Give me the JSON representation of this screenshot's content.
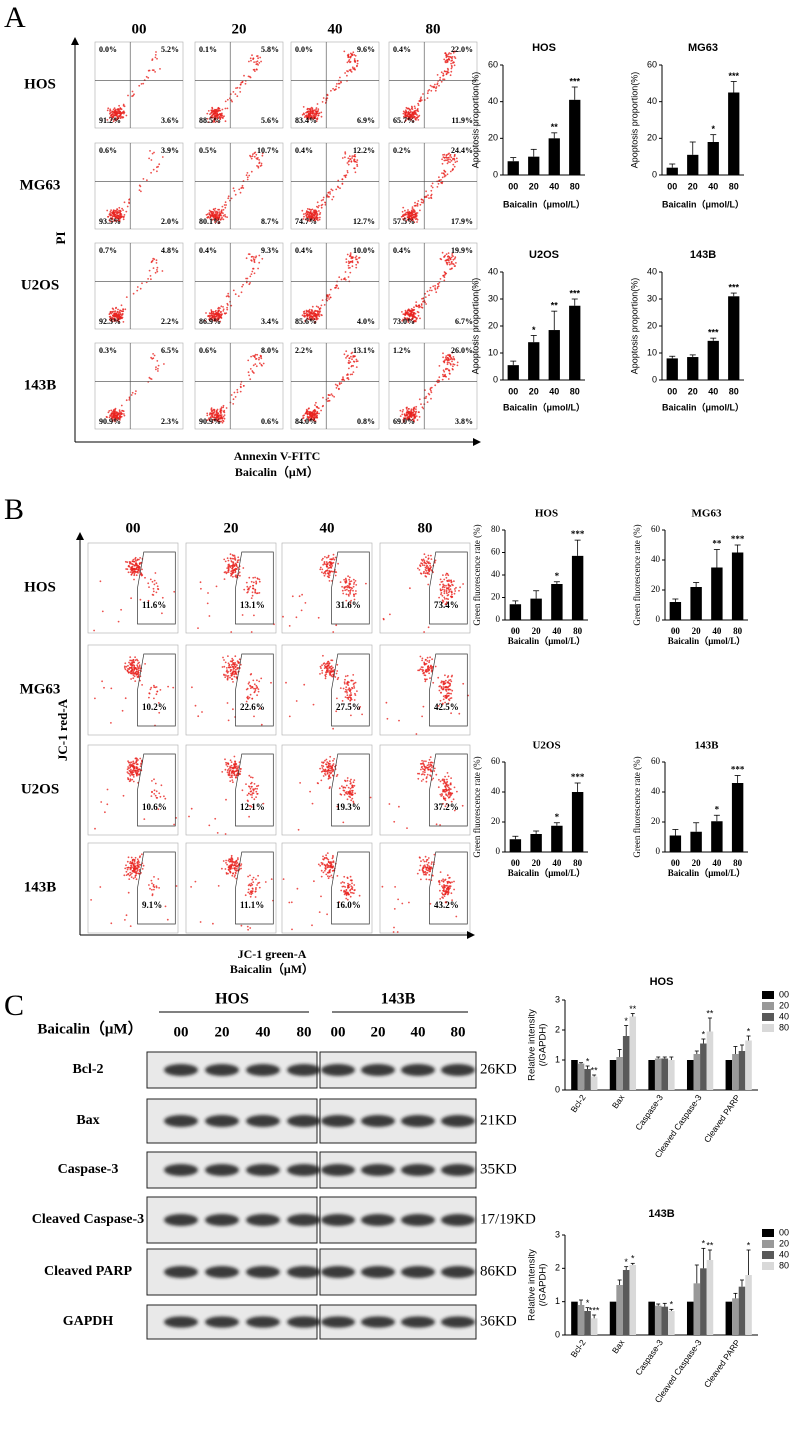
{
  "panel_a": {
    "label": "A",
    "columns": [
      "00",
      "20",
      "40",
      "80"
    ],
    "rows": [
      "HOS",
      "MG63",
      "U2OS",
      "143B"
    ],
    "y_axis_label": "PI",
    "x_axis_label": "Annexin V-FITC",
    "treatment_label": "Baicalin（μM）",
    "quadrants": [
      [
        [
          "0.0%",
          "5.2%",
          "91.2%",
          "3.6%"
        ],
        [
          "0.1%",
          "5.8%",
          "88.5%",
          "5.6%"
        ],
        [
          "0.0%",
          "9.6%",
          "83.4%",
          "6.9%"
        ],
        [
          "0.4%",
          "22.0%",
          "65.7%",
          "11.9%"
        ]
      ],
      [
        [
          "0.6%",
          "3.9%",
          "93.5%",
          "2.0%"
        ],
        [
          "0.5%",
          "10.7%",
          "80.1%",
          "8.7%"
        ],
        [
          "0.4%",
          "12.2%",
          "74.7%",
          "12.7%"
        ],
        [
          "0.2%",
          "24.4%",
          "57.5%",
          "17.9%"
        ]
      ],
      [
        [
          "0.7%",
          "4.8%",
          "92.3%",
          "2.2%"
        ],
        [
          "0.4%",
          "9.3%",
          "86.9%",
          "3.4%"
        ],
        [
          "0.4%",
          "10.0%",
          "85.6%",
          "4.0%"
        ],
        [
          "0.4%",
          "19.9%",
          "73.0%",
          "6.7%"
        ]
      ],
      [
        [
          "0.3%",
          "6.5%",
          "90.9%",
          "2.3%"
        ],
        [
          "0.6%",
          "8.0%",
          "90.9%",
          "0.6%"
        ],
        [
          "2.2%",
          "13.1%",
          "84.0%",
          "0.8%"
        ],
        [
          "1.2%",
          "26.0%",
          "69.0%",
          "3.8%"
        ]
      ]
    ]
  },
  "panel_b": {
    "label": "B",
    "columns": [
      "00",
      "20",
      "40",
      "80"
    ],
    "rows": [
      "HOS",
      "MG63",
      "U2OS",
      "143B"
    ],
    "y_axis_label": "JC-1 red-A",
    "x_axis_label": "JC-1 green-A",
    "treatment_label": "Baicalin（μM）",
    "gates": [
      [
        "11.6%",
        "13.1%",
        "31.6%",
        "73.4%"
      ],
      [
        "10.2%",
        "22.6%",
        "27.5%",
        "42.5%"
      ],
      [
        "10.6%",
        "12.1%",
        "19.3%",
        "37.2%"
      ],
      [
        "9.1%",
        "11.1%",
        "16.0%",
        "43.2%"
      ]
    ]
  },
  "panel_c": {
    "label": "C",
    "treatment_label": "Baicalin（μM）",
    "groups": [
      {
        "name": "HOS",
        "lanes": [
          "00",
          "20",
          "40",
          "80"
        ]
      },
      {
        "name": "143B",
        "lanes": [
          "00",
          "20",
          "40",
          "80"
        ]
      }
    ],
    "proteins": [
      "Bcl-2",
      "Bax",
      "Caspase-3",
      "Cleaved Caspase-3",
      "Cleaved PARP",
      "GAPDH"
    ],
    "sizes": [
      "26KD",
      "21KD",
      "35KD",
      "17/19KD",
      "86KD",
      "36KD"
    ]
  },
  "chart_data": [
    {
      "type": "bar",
      "title": "HOS",
      "categories": [
        "00",
        "20",
        "40",
        "80"
      ],
      "values": [
        7.5,
        10,
        20,
        41
      ],
      "errors": [
        2,
        4,
        3,
        7
      ],
      "significance": [
        null,
        null,
        "**",
        "***"
      ],
      "y_label": "Apoptosis proportion(%)",
      "x_label": "Baicalin（μmol/L）",
      "ylim": [
        0,
        60
      ],
      "yticks": [
        0,
        20,
        40,
        60
      ],
      "color": "#000000"
    },
    {
      "type": "bar",
      "title": "MG63",
      "categories": [
        "00",
        "20",
        "40",
        "80"
      ],
      "values": [
        4,
        11,
        18,
        45
      ],
      "errors": [
        2,
        7,
        4,
        6
      ],
      "significance": [
        null,
        null,
        "*",
        "***"
      ],
      "y_label": "Apoptosis proportion(%)",
      "x_label": "Baicalin（μmol/L）",
      "ylim": [
        0,
        60
      ],
      "yticks": [
        0,
        20,
        40,
        60
      ],
      "color": "#000000"
    },
    {
      "type": "bar",
      "title": "U2OS",
      "categories": [
        "00",
        "20",
        "40",
        "80"
      ],
      "values": [
        5.5,
        14,
        18.5,
        27.5
      ],
      "errors": [
        1.5,
        2.5,
        7,
        2.5
      ],
      "significance": [
        null,
        "*",
        "**",
        "***"
      ],
      "y_label": "Apoptosis proportion(%)",
      "x_label": "Baicalin（μmol/L）",
      "ylim": [
        0,
        40
      ],
      "yticks": [
        0,
        10,
        20,
        30,
        40
      ],
      "color": "#000000"
    },
    {
      "type": "bar",
      "title": "143B",
      "categories": [
        "00",
        "20",
        "40",
        "80"
      ],
      "values": [
        8,
        8.5,
        14.5,
        31
      ],
      "errors": [
        0.8,
        0.8,
        1,
        1.2
      ],
      "significance": [
        null,
        null,
        "***",
        "***"
      ],
      "y_label": "Apoptosis proportion(%)",
      "x_label": "Baicalin（μmol/L）",
      "ylim": [
        0,
        40
      ],
      "yticks": [
        0,
        10,
        20,
        30,
        40
      ],
      "color": "#000000"
    },
    {
      "type": "bar",
      "title": "HOS",
      "categories": [
        "00",
        "20",
        "40",
        "80"
      ],
      "values": [
        14,
        19,
        32,
        57
      ],
      "errors": [
        3,
        7,
        2,
        14
      ],
      "significance": [
        null,
        null,
        "*",
        "***"
      ],
      "y_label": "Green fluorescence rate (%)",
      "x_label": "Baicalin（μmol/L）",
      "ylim": [
        0,
        80
      ],
      "yticks": [
        0,
        20,
        40,
        60,
        80
      ],
      "color": "#000000"
    },
    {
      "type": "bar",
      "title": "MG63",
      "categories": [
        "00",
        "20",
        "40",
        "80"
      ],
      "values": [
        12,
        22,
        35,
        45
      ],
      "errors": [
        2,
        3,
        12,
        5
      ],
      "significance": [
        null,
        null,
        "**",
        "***"
      ],
      "y_label": "Green fluorescence rate (%)",
      "x_label": "Baicalin（μmol/L）",
      "ylim": [
        0,
        60
      ],
      "yticks": [
        0,
        20,
        40,
        60
      ],
      "color": "#000000"
    },
    {
      "type": "bar",
      "title": "U2OS",
      "categories": [
        "00",
        "20",
        "40",
        "80"
      ],
      "values": [
        8.5,
        12,
        17.5,
        40
      ],
      "errors": [
        2,
        2,
        2,
        6
      ],
      "significance": [
        null,
        null,
        "*",
        "***"
      ],
      "y_label": "Green fluorescence rate (%)",
      "x_label": "Baicalin（μmol/L）",
      "ylim": [
        0,
        60
      ],
      "yticks": [
        0,
        20,
        40,
        60
      ],
      "color": "#000000"
    },
    {
      "type": "bar",
      "title": "143B",
      "categories": [
        "00",
        "20",
        "40",
        "80"
      ],
      "values": [
        11,
        13.5,
        20.5,
        46
      ],
      "errors": [
        4,
        6,
        4,
        5
      ],
      "significance": [
        null,
        null,
        "*",
        "***"
      ],
      "y_label": "Green fluorescence rate (%)",
      "x_label": "Baicalin（μmol/L）",
      "ylim": [
        0,
        60
      ],
      "yticks": [
        0,
        20,
        40,
        60
      ],
      "color": "#000000"
    },
    {
      "type": "bar",
      "title": "HOS",
      "categories": [
        "Bcl-2",
        "Bax",
        "Caspase-3",
        "Cleaved Caspase-3",
        "Cleaved PARP"
      ],
      "y_label": [
        "Relative intensity",
        "(/GAPDH)"
      ],
      "ylim": [
        0,
        3
      ],
      "yticks": [
        0,
        1,
        2,
        3
      ],
      "series": [
        {
          "name": "00",
          "color": "#000000",
          "values": [
            1,
            1,
            1,
            1,
            1
          ],
          "significance": [
            null,
            null,
            null,
            null,
            null
          ]
        },
        {
          "name": "20",
          "color": "#999999",
          "values": [
            0.88,
            1.1,
            1.05,
            1.2,
            1.2
          ],
          "errors": [
            0.03,
            0.25,
            0.05,
            0.1,
            0.25
          ],
          "significance": [
            null,
            null,
            null,
            null,
            null
          ]
        },
        {
          "name": "40",
          "color": "#595959",
          "values": [
            0.7,
            1.8,
            1.05,
            1.55,
            1.3
          ],
          "errors": [
            0.1,
            0.35,
            0.05,
            0.15,
            0.2
          ],
          "significance": [
            "*",
            "*",
            null,
            "*",
            null
          ]
        },
        {
          "name": "80",
          "color": "#d9d9d9",
          "values": [
            0.45,
            2.45,
            1.0,
            1.95,
            1.65
          ],
          "errors": [
            0.05,
            0.1,
            0.1,
            0.45,
            0.15
          ],
          "significance": [
            "**",
            "**",
            null,
            "**",
            "*"
          ]
        }
      ]
    },
    {
      "type": "bar",
      "title": "143B",
      "categories": [
        "Bcl-2",
        "Bax",
        "Caspase-3",
        "Cleaved Caspase-3",
        "Cleaved PARP"
      ],
      "y_label": [
        "Relative intensity",
        "(/GAPDH)"
      ],
      "ylim": [
        0,
        3
      ],
      "yticks": [
        0,
        1,
        2,
        3
      ],
      "series": [
        {
          "name": "00",
          "color": "#000000",
          "values": [
            1,
            1,
            1,
            1,
            1
          ],
          "significance": [
            null,
            null,
            null,
            null,
            null
          ]
        },
        {
          "name": "20",
          "color": "#999999",
          "values": [
            0.9,
            1.5,
            0.88,
            1.55,
            1.1
          ],
          "errors": [
            0.15,
            0.15,
            0.05,
            0.55,
            0.15
          ],
          "significance": [
            null,
            null,
            null,
            null,
            null
          ]
        },
        {
          "name": "40",
          "color": "#595959",
          "values": [
            0.72,
            1.95,
            0.85,
            2.0,
            1.45
          ],
          "errors": [
            0.1,
            0.1,
            0.1,
            0.6,
            0.2
          ],
          "significance": [
            "*",
            "*",
            null,
            "*",
            null
          ]
        },
        {
          "name": "80",
          "color": "#d9d9d9",
          "values": [
            0.5,
            2.1,
            0.72,
            2.25,
            1.8
          ],
          "errors": [
            0.1,
            0.05,
            0.05,
            0.3,
            0.75
          ],
          "significance": [
            "***",
            "*",
            "*",
            "**",
            "*"
          ]
        }
      ]
    }
  ]
}
